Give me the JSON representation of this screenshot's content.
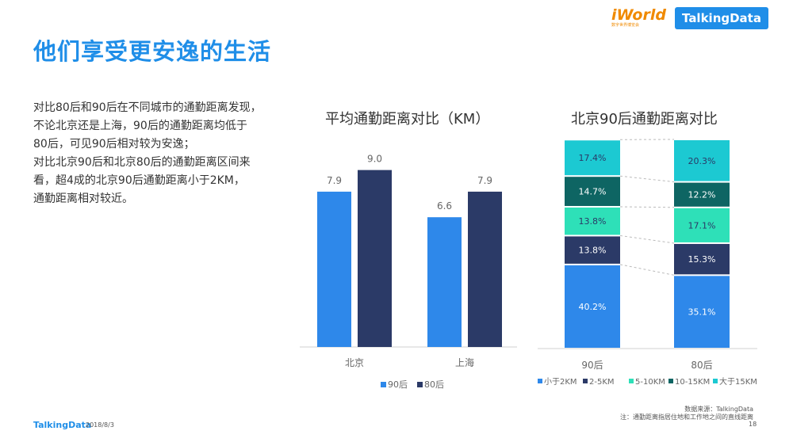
{
  "header": {
    "title": "他们享受更安逸的生活",
    "logo_iworld": "iWorld",
    "logo_iworld_sub": "数字世界博览会",
    "logo_td": "TalkingData"
  },
  "body_text": [
    "对比80后和90后在不同城市的通勤距离发现，",
    "不论北京还是上海，90后的通勤距离均低于",
    "80后，可见90后相对较为安逸；",
    "对比北京90后和北京80后的通勤距离区间来",
    "看，超4成的北京90后通勤距离小于2KM，",
    "通勤距离相对较近。"
  ],
  "footer": {
    "logo": "TalkingData",
    "date": "2018/8/3",
    "source": "数据来源：TalkingData",
    "note": "注：通勤距离指居住地和工作地之间的直线距离",
    "page": "18"
  },
  "colors": {
    "blue": "#2e88ea",
    "navy": "#2b3a67",
    "teal": "#1cc9d2",
    "dark_teal": "#0e6563",
    "mint": "#2ee0b8",
    "title_blue": "#1f8ee8"
  },
  "chart_data": [
    {
      "type": "bar",
      "title": "平均通勤距离对比（KM）",
      "categories": [
        "北京",
        "上海"
      ],
      "series": [
        {
          "name": "90后",
          "values": [
            7.9,
            6.6
          ],
          "color": "#2e88ea"
        },
        {
          "name": "80后",
          "values": [
            9.0,
            7.9
          ],
          "color": "#2b3a67"
        }
      ],
      "ylim": [
        0,
        11.0
      ],
      "legend": "bottom",
      "grid": false
    },
    {
      "type": "bar",
      "stacked": true,
      "percent": true,
      "title": "北京90后通勤距离对比",
      "categories": [
        "90后",
        "80后"
      ],
      "series": [
        {
          "name": "小于2KM",
          "values": [
            40.2,
            35.1
          ],
          "color": "#2e88ea"
        },
        {
          "name": "2-5KM",
          "values": [
            13.8,
            15.3
          ],
          "color": "#2b3a67"
        },
        {
          "name": "5-10KM",
          "values": [
            13.8,
            17.1
          ],
          "color": "#2ee0b8"
        },
        {
          "name": "10-15KM",
          "values": [
            14.7,
            12.2
          ],
          "color": "#0e6563"
        },
        {
          "name": "大于15KM",
          "values": [
            17.4,
            20.3
          ],
          "color": "#1cc9d2"
        }
      ],
      "value_suffix": "%",
      "legend": "bottom",
      "grid": false
    }
  ]
}
